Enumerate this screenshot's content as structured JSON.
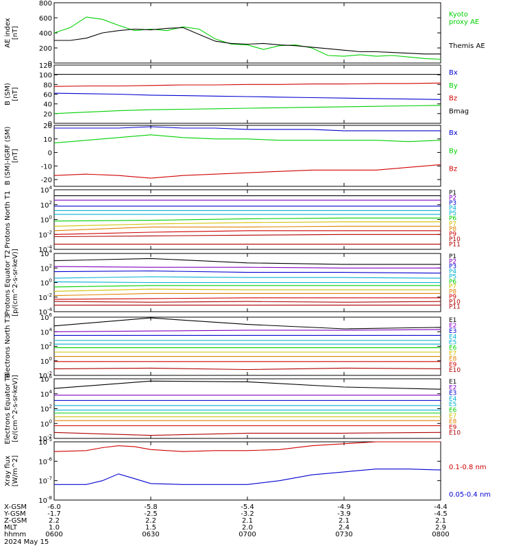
{
  "colors": {
    "black": "#000000",
    "purple": "#8000c0",
    "blue": "#0000d0",
    "cyan": "#00b0d0",
    "green": "#00d000",
    "yellow": "#d0c000",
    "orange": "#e08000",
    "red": "#d00000",
    "darkred": "#b00000",
    "brightgreen": "#00e000"
  },
  "axis_info": {
    "row_labels": [
      "X-GSM",
      "Y-GSM",
      "Z-GSM",
      "MLT",
      "hhmm"
    ],
    "date": "2024 May 15",
    "ticks": [
      {
        "values": [
          "-6.0",
          "-1.7",
          "2.2",
          "1.0",
          "0600"
        ]
      },
      {
        "values": [
          "-5.8",
          "-2.5",
          "2.2",
          "1.5",
          "0630"
        ]
      },
      {
        "values": [
          "-5.4",
          "-3.2",
          "2.1",
          "2.0",
          "0700"
        ]
      },
      {
        "values": [
          "-4.9",
          "-3.9",
          "2.1",
          "2.4",
          "0730"
        ]
      },
      {
        "values": [
          "-4.4",
          "-4.5",
          "2.1",
          "2.9",
          "0800"
        ]
      }
    ]
  },
  "chart_data": [
    {
      "type": "line",
      "ylabel": "AE index [nT]",
      "ylim": [
        0,
        800
      ],
      "yticks": [
        "0",
        "200",
        "400",
        "600",
        "800"
      ],
      "x": [
        "06:00",
        "06:05",
        "06:10",
        "06:15",
        "06:20",
        "06:25",
        "06:30",
        "06:35",
        "06:40",
        "06:45",
        "06:50",
        "06:55",
        "07:00",
        "07:05",
        "07:10",
        "07:15",
        "07:20",
        "07:25",
        "07:30",
        "07:35",
        "07:40",
        "07:45",
        "07:50",
        "07:55",
        "08:00"
      ],
      "series": [
        {
          "name": "Kyoto proxy AE",
          "color": "green",
          "values": [
            400,
            470,
            610,
            580,
            500,
            430,
            450,
            430,
            480,
            450,
            320,
            250,
            240,
            180,
            230,
            240,
            200,
            100,
            90,
            110,
            90,
            100,
            80,
            60,
            50
          ]
        },
        {
          "name": "Themis AE",
          "color": "black",
          "values": [
            300,
            300,
            330,
            400,
            430,
            450,
            440,
            460,
            470,
            380,
            290,
            260,
            250,
            260,
            240,
            230,
            210,
            190,
            170,
            150,
            150,
            140,
            130,
            120,
            120
          ]
        }
      ]
    },
    {
      "type": "line",
      "ylabel": "B (SM) [nT]",
      "ylim": [
        0,
        120
      ],
      "yticks": [
        "0",
        "20",
        "40",
        "60",
        "80",
        "100",
        "120"
      ],
      "x": [
        "06:00",
        "06:10",
        "06:20",
        "06:30",
        "06:40",
        "06:50",
        "07:00",
        "07:10",
        "07:20",
        "07:30",
        "07:40",
        "07:50",
        "08:00"
      ],
      "series": [
        {
          "name": "Bx",
          "color": "blue",
          "values": [
            62,
            61,
            60,
            58,
            57,
            56,
            55,
            54,
            53,
            52,
            51,
            50,
            49
          ]
        },
        {
          "name": "By",
          "color": "green",
          "values": [
            20,
            23,
            26,
            28,
            29,
            30,
            31,
            32,
            33,
            34,
            35,
            36,
            37
          ]
        },
        {
          "name": "Bz",
          "color": "red",
          "values": [
            76,
            77,
            77,
            78,
            79,
            79,
            80,
            80,
            81,
            81,
            82,
            82,
            83
          ]
        },
        {
          "name": "Bmag",
          "color": "black",
          "values": [
            101,
            101,
            101,
            101,
            101,
            101,
            101,
            101,
            101,
            101,
            101,
            101,
            101
          ]
        }
      ]
    },
    {
      "type": "line",
      "ylabel": "B (SM)-IGRF (SM) [nT]",
      "ylim": [
        -25,
        20
      ],
      "yticks": [
        "-20",
        "-10",
        "0",
        "10",
        "20"
      ],
      "x": [
        "06:00",
        "06:10",
        "06:20",
        "06:30",
        "06:40",
        "06:50",
        "07:00",
        "07:10",
        "07:20",
        "07:30",
        "07:40",
        "07:50",
        "08:00"
      ],
      "series": [
        {
          "name": "Bx",
          "color": "blue",
          "values": [
            18,
            18,
            18,
            19,
            18,
            18,
            17,
            17,
            17,
            16,
            16,
            16,
            16
          ]
        },
        {
          "name": "By",
          "color": "green",
          "values": [
            7,
            9,
            11,
            13,
            11,
            10,
            10,
            9,
            9,
            9,
            9,
            8,
            9
          ]
        },
        {
          "name": "Bz",
          "color": "red",
          "values": [
            -17,
            -16,
            -17,
            -19,
            -17,
            -16,
            -15,
            -14,
            -13,
            -13,
            -13,
            -11,
            -9
          ]
        }
      ]
    },
    {
      "type": "line",
      "ylabel": "Protons North T1",
      "yscale": "log",
      "ylim": [
        -4,
        4
      ],
      "yticks": [
        "10^-4",
        "10^-2",
        "10^0",
        "10^2",
        "10^4"
      ],
      "x": [
        "06:00",
        "06:30",
        "07:00",
        "07:30",
        "08:00"
      ],
      "series": [
        {
          "name": "P1",
          "color": "black",
          "values": [
            3.2,
            3.2,
            3.2,
            3.2,
            3.2
          ]
        },
        {
          "name": "P2",
          "color": "purple",
          "values": [
            2.6,
            2.6,
            2.6,
            2.6,
            2.6
          ]
        },
        {
          "name": "P3",
          "color": "blue",
          "values": [
            1.8,
            1.8,
            1.8,
            1.8,
            1.8
          ]
        },
        {
          "name": "P4",
          "color": "cyan",
          "values": [
            1.2,
            1.2,
            1.2,
            1.2,
            1.2
          ]
        },
        {
          "name": "P5",
          "color": "cyan",
          "values": [
            0.7,
            0.7,
            0.7,
            0.7,
            0.7
          ]
        },
        {
          "name": "P6",
          "color": "green",
          "values": [
            -0.2,
            -0.1,
            0.1,
            0.2,
            0.2
          ]
        },
        {
          "name": "P7",
          "color": "yellow",
          "values": [
            -0.9,
            -0.6,
            -0.4,
            -0.3,
            -0.3
          ]
        },
        {
          "name": "P8",
          "color": "orange",
          "values": [
            -1.5,
            -1.0,
            -1.0,
            -0.9,
            -0.9
          ]
        },
        {
          "name": "P9",
          "color": "red",
          "values": [
            -2.0,
            -1.7,
            -1.5,
            -1.5,
            -1.5
          ]
        },
        {
          "name": "P10",
          "color": "darkred",
          "values": [
            -2.3,
            -2.2,
            -2.1,
            -2.0,
            -2.0
          ]
        },
        {
          "name": "P11",
          "color": "darkred",
          "values": [
            -3.3,
            -3.3,
            -3.3,
            -3.3,
            -3.3
          ]
        }
      ]
    },
    {
      "type": "line",
      "ylabel": "Protons Equator T2 [p/(cm^2-s-sr-keV)]",
      "yscale": "log",
      "ylim": [
        -4,
        4
      ],
      "yticks": [
        "10^-4",
        "10^-2",
        "10^0",
        "10^2",
        "10^4"
      ],
      "x": [
        "06:00",
        "06:30",
        "07:00",
        "07:30",
        "08:00"
      ],
      "series": [
        {
          "name": "P1",
          "color": "black",
          "values": [
            3.0,
            3.3,
            2.7,
            2.5,
            2.5
          ]
        },
        {
          "name": "P2",
          "color": "purple",
          "values": [
            2.2,
            2.1,
            2.1,
            2.0,
            2.0
          ]
        },
        {
          "name": "P3",
          "color": "blue",
          "values": [
            1.5,
            1.6,
            1.4,
            1.4,
            1.3
          ]
        },
        {
          "name": "P4",
          "color": "cyan",
          "values": [
            0.6,
            0.8,
            0.7,
            0.7,
            0.6
          ]
        },
        {
          "name": "P5",
          "color": "cyan",
          "values": [
            0.1,
            0.0,
            0.0,
            0.0,
            0.0
          ]
        },
        {
          "name": "P6",
          "color": "green",
          "values": [
            -0.6,
            -0.4,
            -0.4,
            -0.4,
            -0.4
          ]
        },
        {
          "name": "P7",
          "color": "yellow",
          "values": [
            -1.2,
            -0.9,
            -1.0,
            -1.0,
            -1.0
          ]
        },
        {
          "name": "P8",
          "color": "orange",
          "values": [
            -1.8,
            -1.5,
            -1.5,
            -1.5,
            -1.5
          ]
        },
        {
          "name": "P9",
          "color": "red",
          "values": [
            -2.3,
            -2.2,
            -2.1,
            -2.1,
            -2.1
          ]
        },
        {
          "name": "P10",
          "color": "darkred",
          "values": [
            -2.6,
            -2.7,
            -2.6,
            -2.7,
            -2.6
          ]
        },
        {
          "name": "P11",
          "color": "darkred",
          "values": [
            -3.1,
            -3.1,
            -3.1,
            -3.1,
            -3.1
          ]
        }
      ]
    },
    {
      "type": "line",
      "ylabel": "Electrons North T3",
      "yscale": "log",
      "ylim": [
        -2,
        6
      ],
      "yticks": [
        "10^-2",
        "10^0",
        "10^2",
        "10^4",
        "10^6"
      ],
      "x": [
        "06:00",
        "06:30",
        "07:00",
        "07:30",
        "08:00"
      ],
      "series": [
        {
          "name": "E1",
          "color": "black",
          "values": [
            4.8,
            5.9,
            5.0,
            4.4,
            4.6
          ]
        },
        {
          "name": "E2",
          "color": "purple",
          "values": [
            4.0,
            4.1,
            4.2,
            4.2,
            4.3
          ]
        },
        {
          "name": "E3",
          "color": "blue",
          "values": [
            3.5,
            3.5,
            3.5,
            3.5,
            3.5
          ]
        },
        {
          "name": "E4",
          "color": "cyan",
          "values": [
            2.8,
            2.8,
            2.8,
            2.8,
            2.8
          ]
        },
        {
          "name": "E5",
          "color": "cyan",
          "values": [
            2.3,
            2.3,
            2.3,
            2.3,
            2.3
          ]
        },
        {
          "name": "E6",
          "color": "green",
          "values": [
            1.8,
            1.8,
            1.8,
            1.8,
            1.8
          ]
        },
        {
          "name": "E7",
          "color": "yellow",
          "values": [
            1.2,
            1.2,
            1.2,
            1.2,
            1.2
          ]
        },
        {
          "name": "E8",
          "color": "orange",
          "values": [
            0.6,
            0.6,
            0.6,
            0.6,
            0.6
          ]
        },
        {
          "name": "E9",
          "color": "red",
          "values": [
            -0.1,
            -0.1,
            -0.1,
            -0.1,
            -0.1
          ]
        },
        {
          "name": "E10",
          "color": "darkred",
          "values": [
            -1.1,
            -1.0,
            -1.2,
            -1.0,
            -1.1
          ]
        }
      ]
    },
    {
      "type": "line",
      "ylabel": "Electrons Equator T4 [e/(cm^2-s-sr-keV)]",
      "yscale": "log",
      "ylim": [
        -2,
        6
      ],
      "yticks": [
        "10^-2",
        "10^0",
        "10^2",
        "10^4",
        "10^6"
      ],
      "x": [
        "06:00",
        "06:30",
        "07:00",
        "07:30",
        "08:00"
      ],
      "series": [
        {
          "name": "E1",
          "color": "black",
          "values": [
            4.7,
            5.7,
            5.6,
            4.9,
            4.6
          ]
        },
        {
          "name": "E2",
          "color": "purple",
          "values": [
            3.8,
            3.8,
            3.8,
            3.8,
            3.8
          ]
        },
        {
          "name": "E3",
          "color": "blue",
          "values": [
            3.1,
            3.1,
            3.1,
            3.1,
            3.1
          ]
        },
        {
          "name": "E4",
          "color": "cyan",
          "values": [
            2.4,
            2.4,
            2.4,
            2.4,
            2.4
          ]
        },
        {
          "name": "E5",
          "color": "cyan",
          "values": [
            1.8,
            1.8,
            1.8,
            1.8,
            1.8
          ]
        },
        {
          "name": "E6",
          "color": "green",
          "values": [
            1.4,
            1.4,
            1.4,
            1.4,
            1.4
          ]
        },
        {
          "name": "E7",
          "color": "yellow",
          "values": [
            0.9,
            0.9,
            0.9,
            0.9,
            0.9
          ]
        },
        {
          "name": "E8",
          "color": "orange",
          "values": [
            0.4,
            0.4,
            0.4,
            0.4,
            0.4
          ]
        },
        {
          "name": "E9",
          "color": "red",
          "values": [
            -0.3,
            -0.3,
            -0.3,
            -0.3,
            -0.3
          ]
        },
        {
          "name": "E10",
          "color": "darkred",
          "values": [
            -1.2,
            -1.6,
            -1.3,
            -1.3,
            -1.2
          ]
        }
      ]
    },
    {
      "type": "line",
      "ylabel": "Xray flux [W/m^2]",
      "yscale": "log",
      "ylim": [
        -8,
        -5
      ],
      "yticks": [
        "10^-8",
        "10^-7",
        "10^-6",
        "10^-5"
      ],
      "x": [
        "06:00",
        "06:10",
        "06:15",
        "06:20",
        "06:25",
        "06:30",
        "06:40",
        "06:50",
        "07:00",
        "07:10",
        "07:20",
        "07:30",
        "07:40",
        "07:50",
        "08:00"
      ],
      "series": [
        {
          "name": "0.1-0.8 nm",
          "color": "red",
          "values": [
            -5.5,
            -5.45,
            -5.3,
            -5.2,
            -5.25,
            -5.4,
            -5.5,
            -5.45,
            -5.45,
            -5.4,
            -5.2,
            -5.1,
            -5.0,
            -5.0,
            -5.0
          ]
        },
        {
          "name": "0.05-0.4 nm",
          "color": "blue",
          "values": [
            -7.2,
            -7.2,
            -7.0,
            -6.65,
            -6.9,
            -7.15,
            -7.2,
            -7.2,
            -7.2,
            -7.0,
            -6.7,
            -6.55,
            -6.4,
            -6.4,
            -6.45
          ]
        }
      ]
    }
  ]
}
